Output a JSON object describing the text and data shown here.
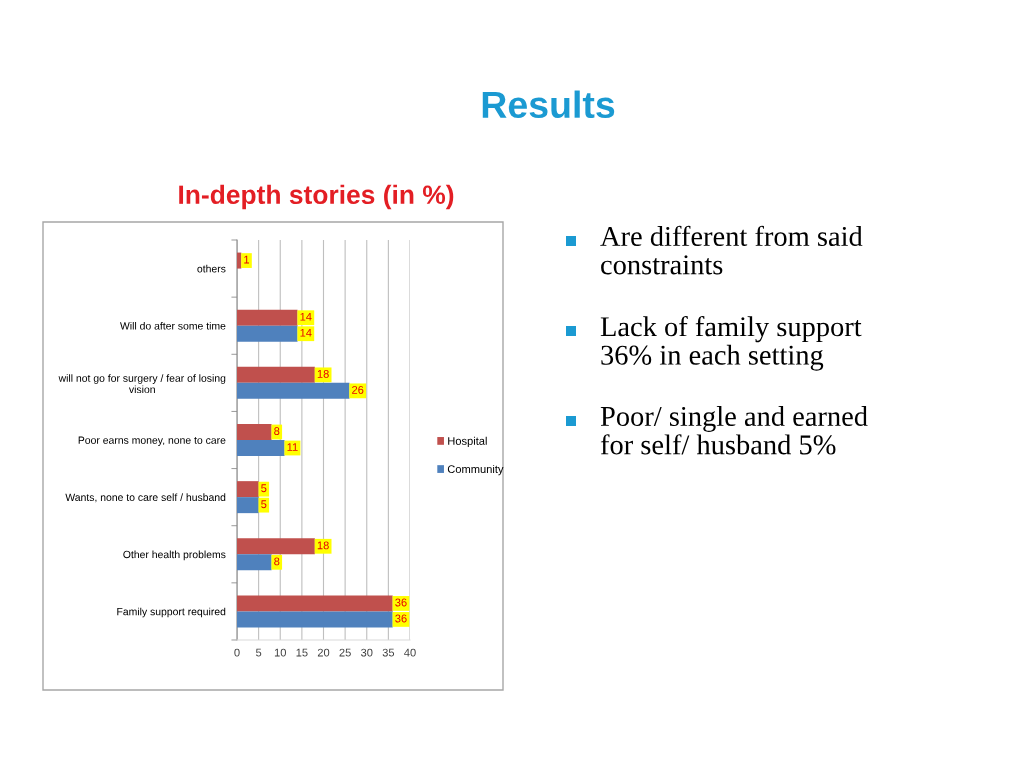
{
  "chart_data": {
    "type": "bar",
    "orientation": "horizontal",
    "title": "Results",
    "subtitle": "In-depth stories (in %)",
    "categories": [
      "others",
      "Will do after some time",
      "will not go for surgery / fear of losing\nvision",
      "Poor earns money, none to care",
      "Wants, none to care self / husband",
      "Other health problems",
      "Family support required"
    ],
    "series": [
      {
        "name": "Hospital",
        "color": "#c0504d",
        "values": [
          1,
          14,
          18,
          8,
          5,
          18,
          36
        ]
      },
      {
        "name": "Community",
        "color": "#4f81bd",
        "values": [
          null,
          14,
          26,
          11,
          5,
          8,
          36
        ]
      }
    ],
    "xlim": [
      0,
      40
    ],
    "xticks": [
      0,
      5,
      10,
      15,
      20,
      25,
      30,
      35,
      40
    ],
    "grid": "x",
    "legend": "right",
    "data_labels": true,
    "annotations": [
      "Are different from said\nconstraints",
      "Lack of family support\n36% in each setting",
      "Poor/ single and earned\nfor self/ husband 5%"
    ]
  }
}
